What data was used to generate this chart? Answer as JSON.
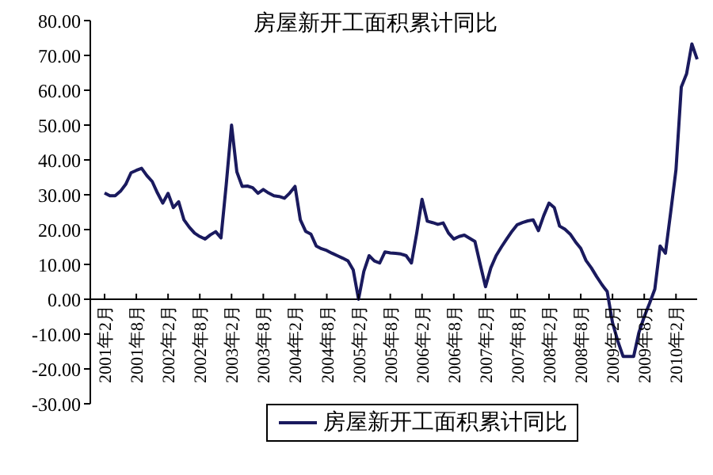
{
  "chart_data": {
    "type": "line",
    "title": "房屋新开工面积累计同比",
    "categories": [
      "2001年2月",
      null,
      null,
      null,
      null,
      null,
      "2001年8月",
      null,
      null,
      null,
      null,
      null,
      "2002年2月",
      null,
      null,
      null,
      null,
      null,
      "2002年8月",
      null,
      null,
      null,
      null,
      null,
      "2003年2月",
      null,
      null,
      null,
      null,
      null,
      "2003年8月",
      null,
      null,
      null,
      null,
      null,
      "2004年2月",
      null,
      null,
      null,
      null,
      null,
      "2004年8月",
      null,
      null,
      null,
      null,
      null,
      "2005年2月",
      null,
      null,
      null,
      null,
      null,
      "2005年8月",
      null,
      null,
      null,
      null,
      null,
      "2006年2月",
      null,
      null,
      null,
      null,
      null,
      "2006年8月",
      null,
      null,
      null,
      null,
      null,
      "2007年2月",
      null,
      null,
      null,
      null,
      null,
      "2007年8月",
      null,
      null,
      null,
      null,
      null,
      "2008年2月",
      null,
      null,
      null,
      null,
      null,
      "2008年8月",
      null,
      null,
      null,
      null,
      null,
      "2009年2月",
      null,
      null,
      null,
      null,
      null,
      "2009年8月",
      null,
      null,
      null,
      null,
      null,
      "2010年2月",
      null,
      null,
      null,
      null
    ],
    "series": [
      {
        "name": "房屋新开工面积累计同比",
        "color": "#1a1a5e",
        "values": [
          30.5,
          29.7,
          29.7,
          31,
          33,
          36.3,
          37,
          37.6,
          35.5,
          33.8,
          30.5,
          27.6,
          30.4,
          26.3,
          28,
          22.8,
          20.7,
          19,
          18,
          17.3,
          18.5,
          19.4,
          17.6,
          33,
          50,
          36.6,
          32.4,
          32.5,
          32,
          30.4,
          31.5,
          30.5,
          29.7,
          29.5,
          29,
          30.5,
          32.4,
          22.8,
          19.5,
          18.7,
          15.3,
          14.5,
          14,
          13.2,
          12.5,
          11.8,
          11,
          8.4,
          0,
          8,
          12.5,
          11,
          10.4,
          13.6,
          13.3,
          13.2,
          13,
          12.5,
          10.4,
          19,
          28.7,
          22.4,
          22,
          21.5,
          21.9,
          19,
          17.3,
          18,
          18.4,
          17.5,
          16.6,
          10,
          3.6,
          9,
          12.5,
          15,
          17.3,
          19.5,
          21.4,
          22,
          22.5,
          22.8,
          19.7,
          24,
          27.6,
          26.3,
          21,
          20.1,
          18.7,
          16.5,
          14.6,
          11.1,
          9,
          6.5,
          4.2,
          2.2,
          -6.7,
          -12,
          -16.4,
          -16.4,
          -16.4,
          -9.5,
          -5,
          -1.2,
          2.9,
          15.3,
          13.2,
          25,
          37.2,
          60.9,
          64.7,
          73.3,
          68.9
        ]
      }
    ],
    "ylim": [
      -30,
      80
    ],
    "yticks": [
      {
        "value": -30,
        "label": "-30.00"
      },
      {
        "value": -20,
        "label": "-20.00"
      },
      {
        "value": -10,
        "label": "-10.00"
      },
      {
        "value": 0,
        "label": "0.00"
      },
      {
        "value": 10,
        "label": "10.00"
      },
      {
        "value": 20,
        "label": "20.00"
      },
      {
        "value": 30,
        "label": "30.00"
      },
      {
        "value": 40,
        "label": "40.00"
      },
      {
        "value": 50,
        "label": "50.00"
      },
      {
        "value": 60,
        "label": "60.00"
      },
      {
        "value": 70,
        "label": "70.00"
      },
      {
        "value": 80,
        "label": "80.00"
      }
    ],
    "grid": false,
    "legend": "bottom",
    "marker": "none",
    "line_style": "solid"
  }
}
